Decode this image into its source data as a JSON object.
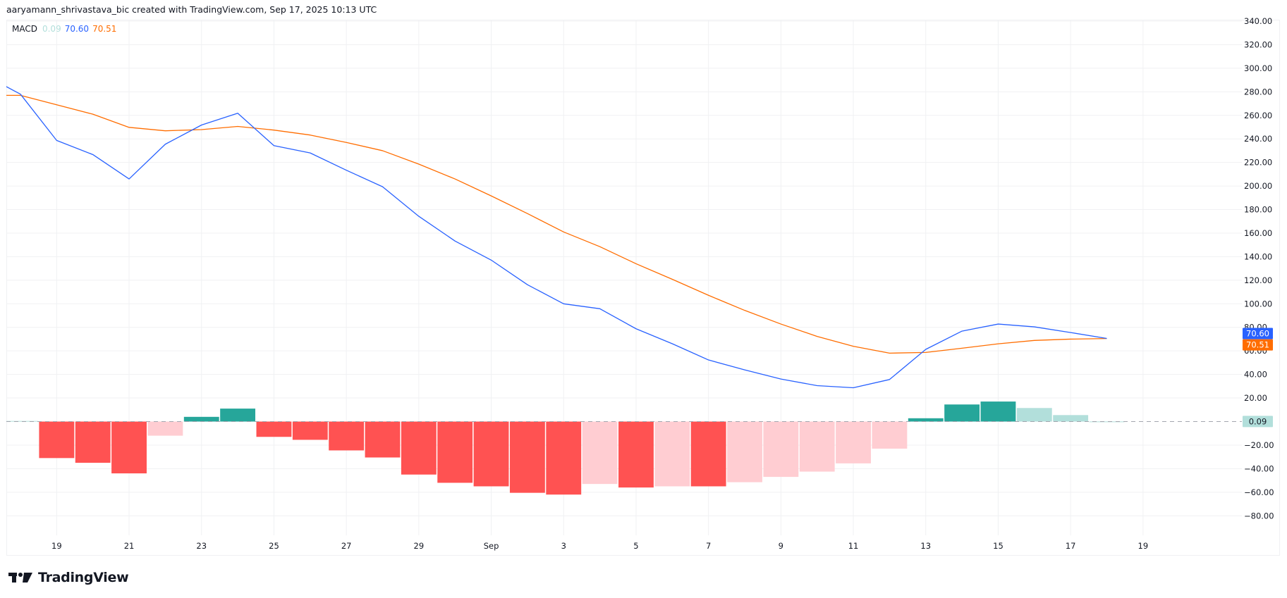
{
  "header": {
    "attribution": "aaryamann_shrivastava_bic created with TradingView.com, Sep 17, 2025 10:13 UTC"
  },
  "legend": {
    "indicator": "MACD",
    "histogram_value": "0.09",
    "macd_value": "70.60",
    "signal_value": "70.51"
  },
  "colors": {
    "macd_line": "#2962ff",
    "signal_line": "#ff6d00",
    "hist_pos_strong": "#26a69a",
    "hist_pos_weak": "#b2dfdb",
    "hist_neg_strong": "#ff5252",
    "hist_neg_weak": "#ffcdd2",
    "grid": "#f0f1f3",
    "zero_line": "#a3a6af"
  },
  "price_axis": {
    "ticks": [
      "340.00",
      "320.00",
      "300.00",
      "280.00",
      "260.00",
      "240.00",
      "220.00",
      "200.00",
      "180.00",
      "160.00",
      "140.00",
      "120.00",
      "100.00",
      "80.00",
      "60.00",
      "40.00",
      "20.00",
      "−20.00",
      "−40.00",
      "−60.00",
      "−80.00"
    ],
    "badges": [
      {
        "label": "70.60",
        "value": 70.6,
        "bg": "#2962ff",
        "fg": "#ffffff"
      },
      {
        "label": "70.51",
        "value": 70.51,
        "bg": "#ff6d00",
        "fg": "#ffffff"
      },
      {
        "label": "0.09",
        "value": 0.09,
        "bg": "#b2dfdb",
        "fg": "#131722"
      }
    ]
  },
  "time_axis": {
    "labels": [
      "19",
      "21",
      "23",
      "25",
      "27",
      "29",
      "Sep",
      "3",
      "5",
      "7",
      "9",
      "11",
      "13",
      "15",
      "17",
      "19"
    ]
  },
  "logo": {
    "text": "TradingView"
  },
  "chart_data": {
    "type": "line",
    "title": "MACD",
    "xlabel": "",
    "ylabel": "",
    "ylim": [
      -90,
      345
    ],
    "grid": true,
    "legend_position": "top-left",
    "x": [
      "Aug 18",
      "Aug 19",
      "Aug 20",
      "Aug 21",
      "Aug 22",
      "Aug 23",
      "Aug 24",
      "Aug 25",
      "Aug 26",
      "Aug 27",
      "Aug 28",
      "Aug 29",
      "Aug 30",
      "Aug 31",
      "Sep 1",
      "Sep 2",
      "Sep 3",
      "Sep 4",
      "Sep 5",
      "Sep 6",
      "Sep 7",
      "Sep 8",
      "Sep 9",
      "Sep 10",
      "Sep 11",
      "Sep 12",
      "Sep 13",
      "Sep 14",
      "Sep 15",
      "Sep 16",
      "Sep 17"
    ],
    "series": [
      {
        "name": "MACD",
        "type": "line",
        "color": "#2962ff",
        "values": [
          278,
          238.7,
          226.7,
          206,
          235.5,
          251.8,
          261.8,
          234.3,
          228.1,
          213.4,
          199.4,
          174.3,
          153.3,
          137.1,
          116.2,
          100,
          95.8,
          78.8,
          66.1,
          52.3,
          43.9,
          36.1,
          30.5,
          28.7,
          35.7,
          61.3,
          76.8,
          82.8,
          80.4,
          75.6,
          70.6
        ]
      },
      {
        "name": "Signal",
        "type": "line",
        "color": "#ff6d00",
        "values": [
          277,
          269,
          261,
          249.8,
          246.9,
          247.9,
          250.6,
          247.5,
          243.3,
          237,
          230,
          218.6,
          206,
          191.6,
          176.6,
          161,
          148.5,
          134,
          120.8,
          107.2,
          94.4,
          82.8,
          72.3,
          63.9,
          58.1,
          58.7,
          62.3,
          66,
          68.9,
          70,
          70.51
        ]
      },
      {
        "name": "Histogram",
        "type": "bar",
        "values": [
          0.5,
          -31,
          -35,
          -44,
          -12,
          4,
          11,
          -13,
          -15.5,
          -24.5,
          -30.5,
          -45,
          -52,
          -55,
          -60.5,
          -62,
          -53,
          -56,
          -55,
          -55,
          -51.5,
          -47,
          -42.5,
          -35.5,
          -23,
          2.8,
          14.5,
          17,
          11.5,
          5.5,
          0.09
        ],
        "colors": [
          "weak_pos",
          "strong_neg",
          "strong_neg",
          "strong_neg",
          "weak_neg",
          "strong_pos",
          "strong_pos",
          "strong_neg",
          "strong_neg",
          "strong_neg",
          "strong_neg",
          "strong_neg",
          "strong_neg",
          "strong_neg",
          "strong_neg",
          "strong_neg",
          "weak_neg",
          "strong_neg",
          "weak_neg",
          "strong_neg",
          "weak_neg",
          "weak_neg",
          "weak_neg",
          "weak_neg",
          "weak_neg",
          "strong_pos",
          "strong_pos",
          "strong_pos",
          "weak_pos",
          "weak_pos",
          "weak_pos"
        ]
      }
    ],
    "yticks": [
      340,
      320,
      300,
      280,
      260,
      240,
      220,
      200,
      180,
      160,
      140,
      120,
      100,
      80,
      60,
      40,
      20,
      -20,
      -40,
      -60,
      -80
    ],
    "xtick_labels": [
      "19",
      "21",
      "23",
      "25",
      "27",
      "29",
      "Sep",
      "3",
      "5",
      "7",
      "9",
      "11",
      "13",
      "15",
      "17",
      "19"
    ]
  }
}
